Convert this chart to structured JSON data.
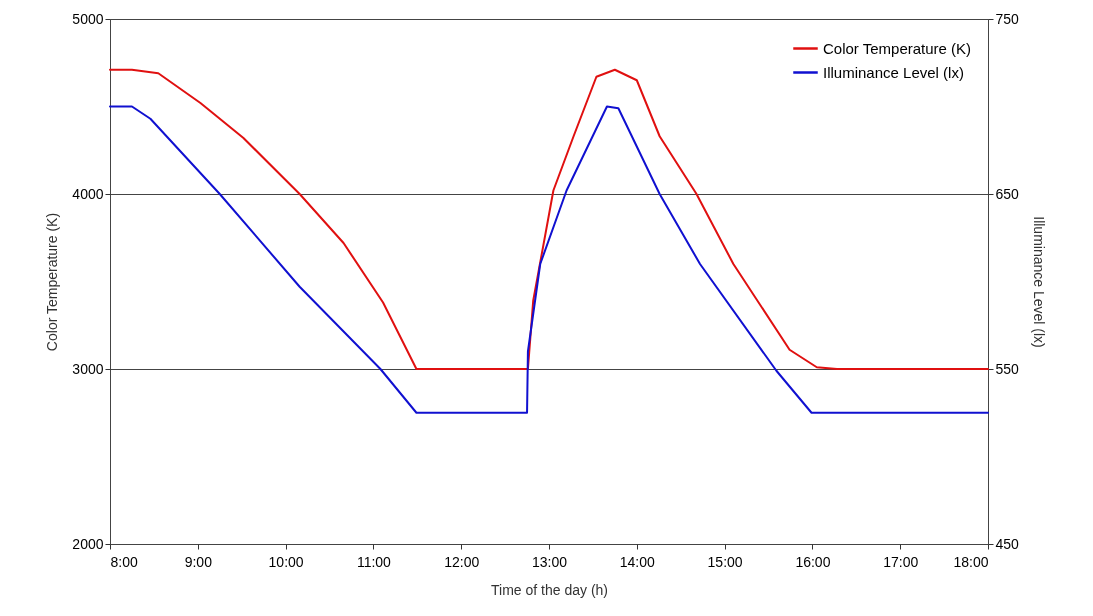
{
  "chart_data": {
    "type": "line",
    "xlabel": "Time of the day (h)",
    "ylabel": "Color Temperature (K)",
    "y2label": "Illuminance Level (lx)",
    "xlim": [
      8,
      18
    ],
    "xticks": [
      {
        "value": 8,
        "label": "8:00"
      },
      {
        "value": 9,
        "label": "9:00"
      },
      {
        "value": 10,
        "label": "10:00"
      },
      {
        "value": 11,
        "label": "11:00"
      },
      {
        "value": 12,
        "label": "12:00"
      },
      {
        "value": 13,
        "label": "13:00"
      },
      {
        "value": 14,
        "label": "14:00"
      },
      {
        "value": 15,
        "label": "15:00"
      },
      {
        "value": 16,
        "label": "16:00"
      },
      {
        "value": 17,
        "label": "17:00"
      },
      {
        "value": 18,
        "label": "18:00"
      }
    ],
    "ylim": [
      2000,
      5000
    ],
    "yticks": [
      2000,
      3000,
      4000,
      5000
    ],
    "y2lim": [
      450,
      750
    ],
    "y2ticks": [
      450,
      550,
      650,
      750
    ],
    "grid": "y",
    "legend": "top right",
    "marker": "none",
    "line_style": "solid",
    "series": [
      {
        "name": "Color Temperature (K)",
        "color": "#e01010",
        "x": [
          8,
          8.25,
          8.55,
          9.03,
          9.52,
          10.16,
          10.66,
          11.11,
          11.49,
          12.76,
          12.82,
          13.05,
          13.28,
          13.54,
          13.75,
          14.0,
          14.26,
          14.68,
          15.1,
          15.74,
          16.05,
          16.28,
          18
        ],
        "values": [
          4710,
          4710,
          4690,
          4520,
          4320,
          4000,
          3720,
          3380,
          3000,
          3000,
          3390,
          4020,
          4330,
          4670,
          4710,
          4650,
          4330,
          4000,
          3600,
          3110,
          3010,
          3000,
          3000
        ]
      },
      {
        "name": "Illuminance Level (lx)",
        "color": "#1010d0",
        "axis": "y2",
        "x": [
          8,
          8.25,
          8.46,
          9.25,
          10.16,
          11.08,
          11.49,
          12.75,
          12.76,
          12.9,
          13.2,
          13.66,
          13.79,
          14.26,
          14.72,
          15.59,
          15.99,
          18
        ],
        "values": [
          700,
          700,
          693,
          650,
          597,
          550,
          525,
          525,
          560,
          610,
          652,
          700,
          699,
          650,
          610,
          549,
          525,
          525
        ]
      }
    ]
  }
}
